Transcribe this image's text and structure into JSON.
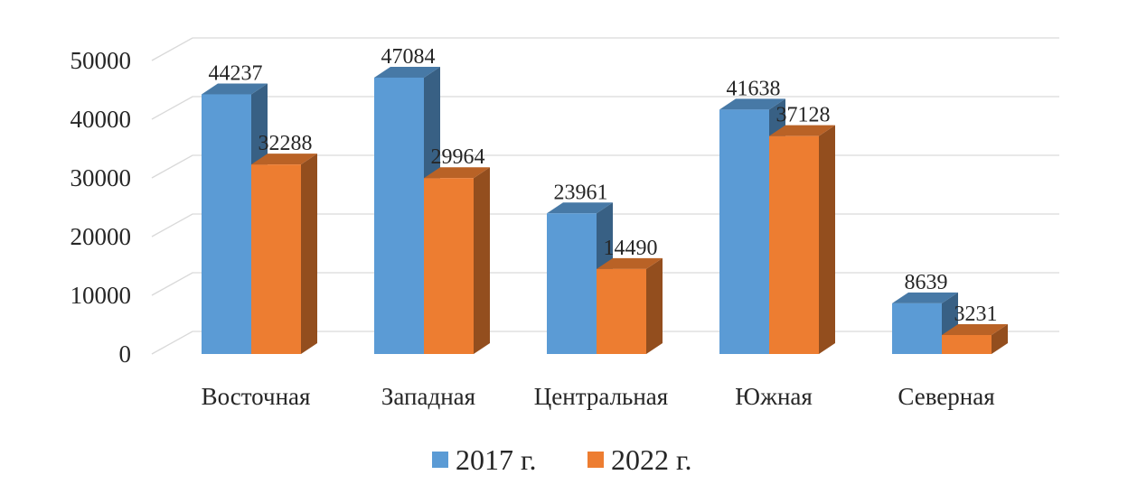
{
  "chart_data": {
    "type": "bar",
    "categories": [
      "Восточная",
      "Западная",
      "Центральная",
      "Южная",
      "Северная"
    ],
    "series": [
      {
        "name": "2017 г.",
        "values": [
          44237,
          47084,
          23961,
          41638,
          8639
        ]
      },
      {
        "name": "2022 г.",
        "values": [
          32288,
          29964,
          14490,
          37128,
          3231
        ]
      }
    ],
    "title": "",
    "xlabel": "",
    "ylabel": "",
    "ylim": [
      0,
      50000
    ],
    "yticks": [
      0,
      10000,
      20000,
      30000,
      40000,
      50000
    ],
    "grid": true,
    "legend": "bottom",
    "style": "3d-clustered-column"
  },
  "colors": {
    "series": [
      "#5b9bd5",
      "#ed7d31"
    ],
    "grid": "#d9d9d9",
    "text": "#262626"
  }
}
